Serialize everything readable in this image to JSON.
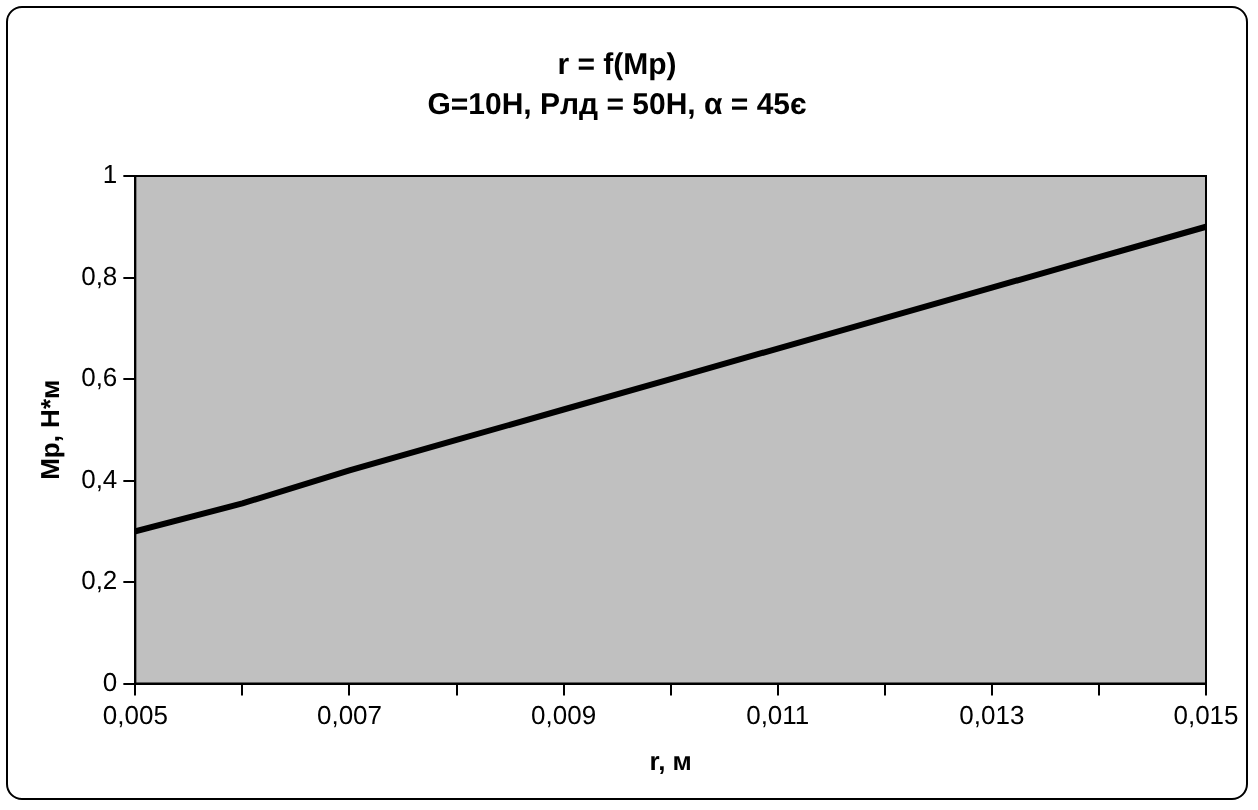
{
  "chart_data": {
    "type": "line",
    "title": "r = f(Мр)",
    "subtitle": "G=10Н, Рлд = 50Н, α = 45є",
    "xlabel": "r, м",
    "ylabel": "Мр, Н*м",
    "x": [
      0.005,
      0.006,
      0.007,
      0.008,
      0.009,
      0.01,
      0.011,
      0.012,
      0.013,
      0.014,
      0.015
    ],
    "series": [
      {
        "color": "#000000",
        "values": [
          0.3,
          0.355,
          0.42,
          0.48,
          0.54,
          0.6,
          0.66,
          0.72,
          0.78,
          0.84,
          0.9
        ]
      }
    ],
    "xlim": [
      0.005,
      0.015
    ],
    "xticks": [
      {
        "value": 0.005,
        "label": "0,005"
      },
      {
        "value": 0.006,
        "label": null
      },
      {
        "value": 0.007,
        "label": "0,007"
      },
      {
        "value": 0.008,
        "label": null
      },
      {
        "value": 0.009,
        "label": "0,009"
      },
      {
        "value": 0.01,
        "label": null
      },
      {
        "value": 0.011,
        "label": "0,011"
      },
      {
        "value": 0.012,
        "label": null
      },
      {
        "value": 0.013,
        "label": "0,013"
      },
      {
        "value": 0.014,
        "label": null
      },
      {
        "value": 0.015,
        "label": "0,015"
      }
    ],
    "ylim": [
      0,
      1
    ],
    "yticks": [
      0,
      {
        "value": 0.2,
        "label": "0,2"
      },
      {
        "value": 0.4,
        "label": "0,4"
      },
      {
        "value": 0.6,
        "label": "0,6"
      },
      {
        "value": 0.8,
        "label": "0,8"
      },
      1
    ],
    "grid": false,
    "legend": false,
    "marker": "none",
    "line_style": "solid"
  }
}
